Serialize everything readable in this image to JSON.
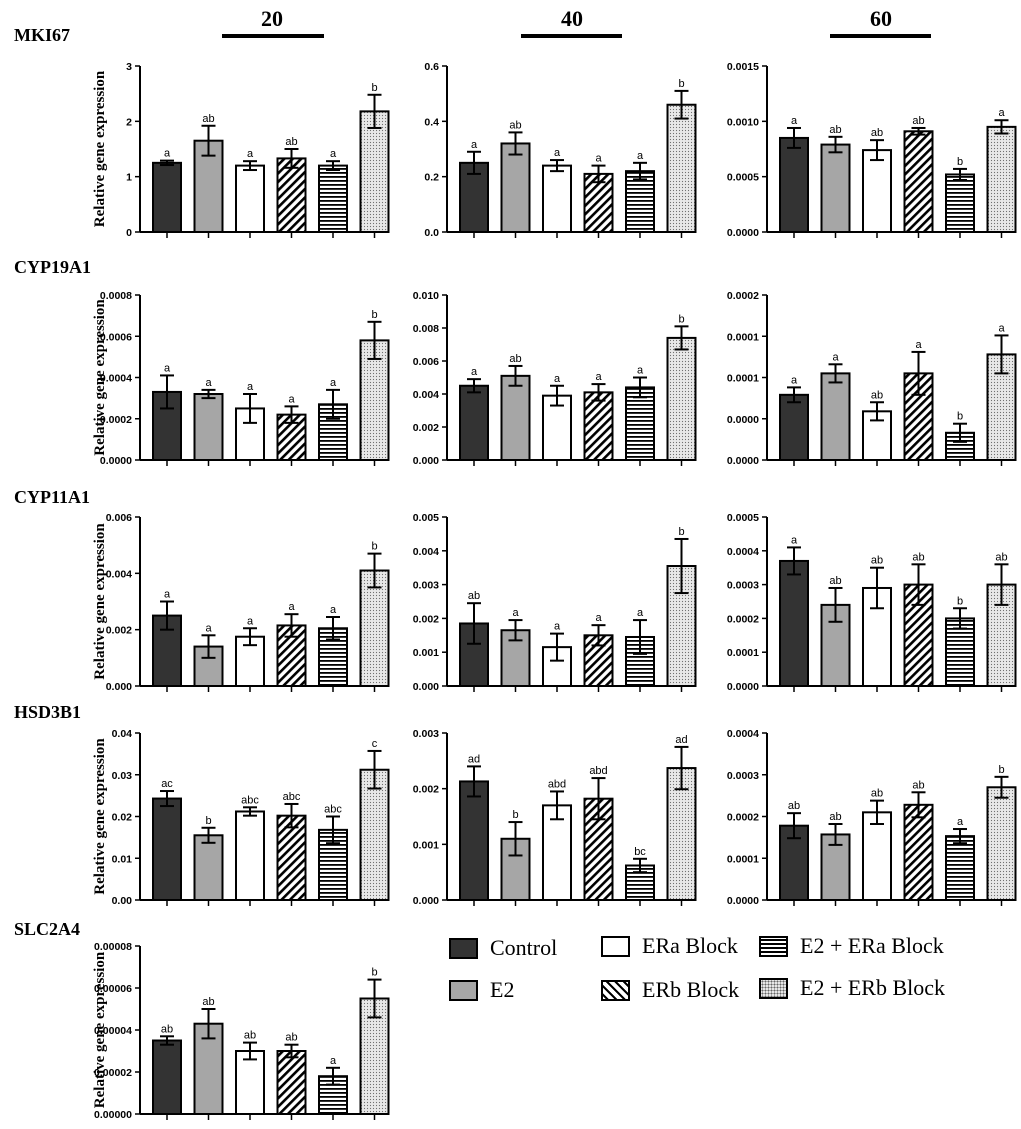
{
  "colors": {
    "control": "#333333",
    "e2": "#a6a6a6",
    "erablock": "#ffffff",
    "erbblock_pattern": "#000000",
    "e2era_pattern": "#000000",
    "e2erb_pattern": "#e6e6e6"
  },
  "headers": [
    "20",
    "40",
    "60"
  ],
  "legend": {
    "items": [
      {
        "key": "control",
        "label": "Control"
      },
      {
        "key": "e2",
        "label": "E2"
      },
      {
        "key": "erablock",
        "label": "ERa Block"
      },
      {
        "key": "erbblock",
        "label": "ERb Block"
      },
      {
        "key": "e2era",
        "label": "E2 + ERa Block"
      },
      {
        "key": "e2erb",
        "label": "E2 + ERb Block"
      }
    ]
  },
  "chart_data": [
    {
      "type": "bar",
      "gene": "MKI67",
      "column": "20",
      "ylabel": "Relative gene expression",
      "ylim": [
        0,
        3
      ],
      "ticks": [
        "0",
        "1",
        "2",
        "3"
      ],
      "categories": [
        "Control",
        "E2",
        "ERa Block",
        "ERb Block",
        "E2 + ERa Block",
        "E2 + ERb Block"
      ],
      "values": [
        1.25,
        1.65,
        1.2,
        1.33,
        1.2,
        2.18
      ],
      "errors": [
        0.04,
        0.27,
        0.08,
        0.17,
        0.08,
        0.3
      ],
      "letters": [
        "a",
        "ab",
        "a",
        "ab",
        "a",
        "b"
      ]
    },
    {
      "type": "bar",
      "gene": "MKI67",
      "column": "40",
      "ylabel": "",
      "ylim": [
        0,
        0.6
      ],
      "ticks": [
        "0.0",
        "0.2",
        "0.4",
        "0.6"
      ],
      "categories": [
        "Control",
        "E2",
        "ERa Block",
        "ERb Block",
        "E2 + ERa Block",
        "E2 + ERb Block"
      ],
      "values": [
        0.25,
        0.32,
        0.24,
        0.21,
        0.22,
        0.46
      ],
      "errors": [
        0.04,
        0.04,
        0.02,
        0.03,
        0.03,
        0.05
      ],
      "letters": [
        "a",
        "ab",
        "a",
        "a",
        "a",
        "b"
      ]
    },
    {
      "type": "bar",
      "gene": "MKI67",
      "column": "60",
      "ylabel": "",
      "ylim": [
        0,
        0.0015
      ],
      "ticks": [
        "0.0000",
        "0.0005",
        "0.0010",
        "0.0015"
      ],
      "categories": [
        "Control",
        "E2",
        "ERa Block",
        "ERb Block",
        "E2 + ERa Block",
        "E2 + ERb Block"
      ],
      "values": [
        0.00085,
        0.00079,
        0.00074,
        0.00091,
        0.00052,
        0.00095
      ],
      "errors": [
        9e-05,
        7e-05,
        9e-05,
        3e-05,
        5e-05,
        6e-05
      ],
      "letters": [
        "a",
        "ab",
        "ab",
        "ab",
        "b",
        "a"
      ]
    },
    {
      "type": "bar",
      "gene": "CYP19A1",
      "column": "20",
      "ylabel": "Relative gene expression",
      "ylim": [
        0,
        0.0008
      ],
      "ticks": [
        "0.0000",
        "0.0002",
        "0.0004",
        "0.0006",
        "0.0008"
      ],
      "categories": [
        "Control",
        "E2",
        "ERa Block",
        "ERb Block",
        "E2 + ERa Block",
        "E2 + ERb Block"
      ],
      "values": [
        0.00033,
        0.00032,
        0.00025,
        0.00022,
        0.00027,
        0.00058
      ],
      "errors": [
        8e-05,
        2e-05,
        7e-05,
        4e-05,
        7e-05,
        9e-05
      ],
      "letters": [
        "a",
        "a",
        "a",
        "a",
        "a",
        "b"
      ]
    },
    {
      "type": "bar",
      "gene": "CYP19A1",
      "column": "40",
      "ylabel": "",
      "ylim": [
        0,
        0.01
      ],
      "ticks": [
        "0.000",
        "0.002",
        "0.004",
        "0.006",
        "0.008",
        "0.010"
      ],
      "categories": [
        "Control",
        "E2",
        "ERa Block",
        "ERb Block",
        "E2 + ERa Block",
        "E2 + ERb Block"
      ],
      "values": [
        0.0045,
        0.0051,
        0.0039,
        0.0041,
        0.0044,
        0.0074
      ],
      "errors": [
        0.0004,
        0.0006,
        0.0006,
        0.0005,
        0.0006,
        0.0007
      ],
      "letters": [
        "a",
        "ab",
        "a",
        "a",
        "a",
        "b"
      ]
    },
    {
      "type": "bar",
      "gene": "CYP19A1",
      "column": "60",
      "ylabel": "",
      "ylim": [
        0,
        0.0002
      ],
      "ticks": [
        "0.0000",
        "0.0000",
        "0.0001",
        "0.0001",
        "0.0002"
      ],
      "categories": [
        "Control",
        "E2",
        "ERa Block",
        "ERb Block",
        "E2 + ERa Block",
        "E2 + ERb Block"
      ],
      "values": [
        7.9e-05,
        0.000105,
        5.9e-05,
        0.000105,
        3.3e-05,
        0.000128
      ],
      "errors": [
        9e-06,
        1.1e-05,
        1.1e-05,
        2.6e-05,
        1.1e-05,
        2.3e-05
      ],
      "letters": [
        "a",
        "a",
        "ab",
        "a",
        "b",
        "a"
      ]
    },
    {
      "type": "bar",
      "gene": "CYP11A1",
      "column": "20",
      "ylabel": "Relative gene expression",
      "ylim": [
        0,
        0.006
      ],
      "ticks": [
        "0.000",
        "0.002",
        "0.004",
        "0.006"
      ],
      "categories": [
        "Control",
        "E2",
        "ERa Block",
        "ERb Block",
        "E2 + ERa Block",
        "E2 + ERb Block"
      ],
      "values": [
        0.0025,
        0.0014,
        0.00175,
        0.00215,
        0.00205,
        0.0041
      ],
      "errors": [
        0.0005,
        0.0004,
        0.0003,
        0.0004,
        0.0004,
        0.0006
      ],
      "letters": [
        "a",
        "a",
        "a",
        "a",
        "a",
        "b"
      ]
    },
    {
      "type": "bar",
      "gene": "CYP11A1",
      "column": "40",
      "ylabel": "",
      "ylim": [
        0,
        0.005
      ],
      "ticks": [
        "0.000",
        "0.001",
        "0.002",
        "0.003",
        "0.004",
        "0.005"
      ],
      "categories": [
        "Control",
        "E2",
        "ERa Block",
        "ERb Block",
        "E2 + ERa Block",
        "E2 + ERb Block"
      ],
      "values": [
        0.00185,
        0.00165,
        0.00115,
        0.0015,
        0.00145,
        0.00355
      ],
      "errors": [
        0.0006,
        0.0003,
        0.0004,
        0.0003,
        0.0005,
        0.0008
      ],
      "letters": [
        "ab",
        "a",
        "a",
        "a",
        "a",
        "b"
      ]
    },
    {
      "type": "bar",
      "gene": "CYP11A1",
      "column": "60",
      "ylabel": "",
      "ylim": [
        0,
        0.0005
      ],
      "ticks": [
        "0.0000",
        "0.0001",
        "0.0002",
        "0.0003",
        "0.0004",
        "0.0005"
      ],
      "categories": [
        "Control",
        "E2",
        "ERa Block",
        "ERb Block",
        "E2 + ERa Block",
        "E2 + ERb Block"
      ],
      "values": [
        0.00037,
        0.00024,
        0.00029,
        0.0003,
        0.0002,
        0.0003
      ],
      "errors": [
        4e-05,
        5e-05,
        6e-05,
        6e-05,
        3e-05,
        6e-05
      ],
      "letters": [
        "a",
        "ab",
        "ab",
        "ab",
        "b",
        "ab"
      ]
    },
    {
      "type": "bar",
      "gene": "HSD3B1",
      "column": "20",
      "ylabel": "Relative gene expression",
      "ylim": [
        0,
        0.04
      ],
      "ticks": [
        "0.00",
        "0.01",
        "0.02",
        "0.03",
        "0.04"
      ],
      "categories": [
        "Control",
        "E2",
        "ERa Block",
        "ERb Block",
        "E2 + ERa Block",
        "E2 + ERb Block"
      ],
      "values": [
        0.0243,
        0.0155,
        0.0212,
        0.0202,
        0.0168,
        0.0312
      ],
      "errors": [
        0.0018,
        0.0018,
        0.001,
        0.0028,
        0.0032,
        0.0045
      ],
      "letters": [
        "ac",
        "b",
        "abc",
        "abc",
        "abc",
        "c"
      ]
    },
    {
      "type": "bar",
      "gene": "HSD3B1",
      "column": "40",
      "ylabel": "",
      "ylim": [
        0,
        0.003
      ],
      "ticks": [
        "0.000",
        "0.001",
        "0.002",
        "0.003"
      ],
      "categories": [
        "Control",
        "E2",
        "ERa Block",
        "ERb Block",
        "E2 + ERa Block",
        "E2 + ERb Block"
      ],
      "values": [
        0.00213,
        0.0011,
        0.0017,
        0.00182,
        0.00062,
        0.00237
      ],
      "errors": [
        0.00027,
        0.0003,
        0.00025,
        0.00037,
        0.00012,
        0.00038
      ],
      "letters": [
        "ad",
        "b",
        "abd",
        "abd",
        "bc",
        "ad"
      ]
    },
    {
      "type": "bar",
      "gene": "HSD3B1",
      "column": "60",
      "ylabel": "",
      "ylim": [
        0,
        0.0004
      ],
      "ticks": [
        "0.0000",
        "0.0001",
        "0.0002",
        "0.0003",
        "0.0004"
      ],
      "categories": [
        "Control",
        "E2",
        "ERa Block",
        "ERb Block",
        "E2 + ERa Block",
        "E2 + ERb Block"
      ],
      "values": [
        0.000178,
        0.000157,
        0.00021,
        0.000228,
        0.000153,
        0.00027
      ],
      "errors": [
        3e-05,
        2.5e-05,
        2.8e-05,
        3e-05,
        1.7e-05,
        2.5e-05
      ],
      "letters": [
        "ab",
        "ab",
        "ab",
        "ab",
        "a",
        "b"
      ]
    },
    {
      "type": "bar",
      "gene": "SLC2A4",
      "column": "20",
      "ylabel": "Relative gene expression",
      "ylim": [
        0,
        8e-05
      ],
      "ticks": [
        "0.00000",
        "0.00002",
        "0.00004",
        "0.00006",
        "0.00008"
      ],
      "categories": [
        "Control",
        "E2",
        "ERa Block",
        "ERb Block",
        "E2 + ERa Block",
        "E2 + ERb Block"
      ],
      "values": [
        3.5e-05,
        4.3e-05,
        3e-05,
        3e-05,
        1.8e-05,
        5.5e-05
      ],
      "errors": [
        2e-06,
        7e-06,
        4e-06,
        3e-06,
        4e-06,
        9e-06
      ],
      "letters": [
        "ab",
        "ab",
        "ab",
        "ab",
        "a",
        "b"
      ]
    }
  ]
}
